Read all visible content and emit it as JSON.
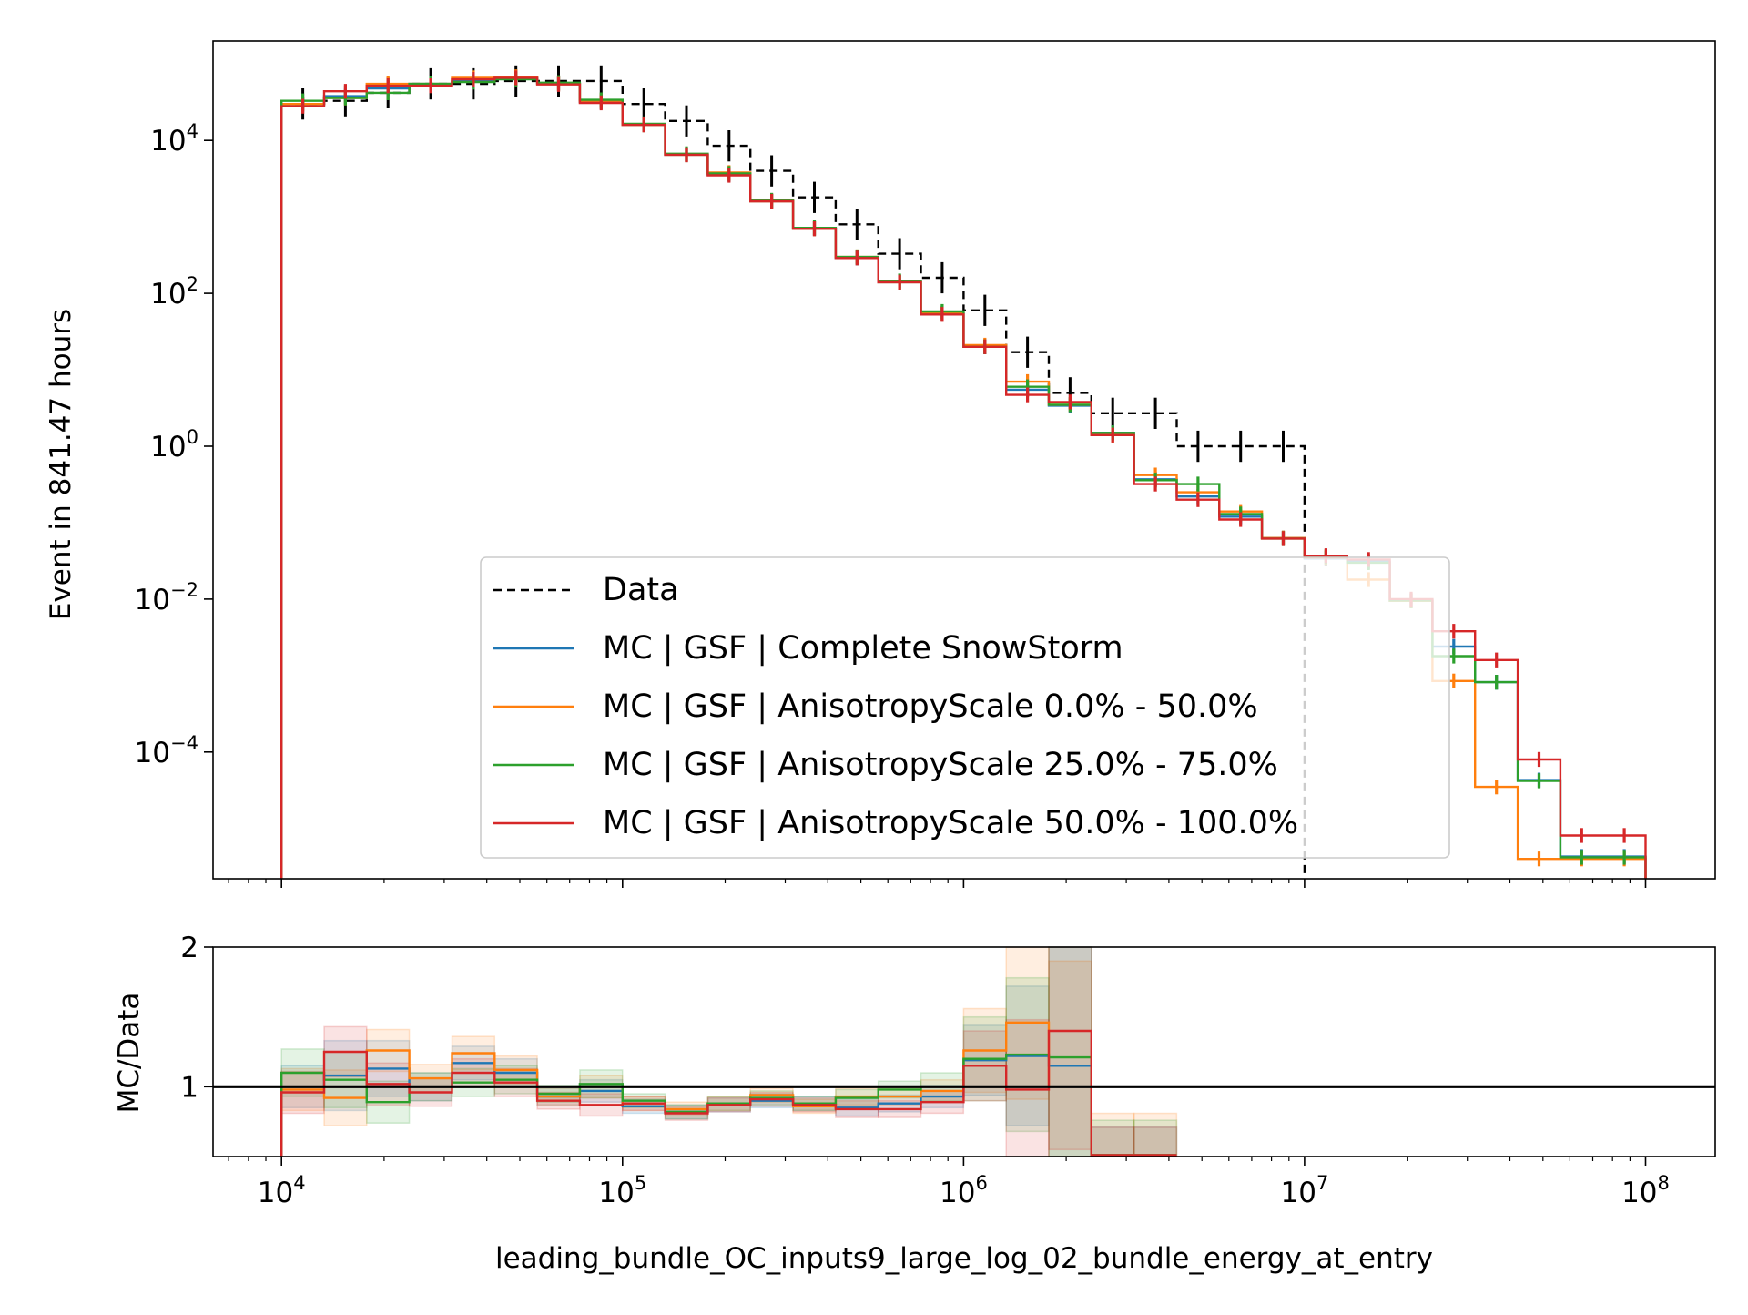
{
  "chart_data": [
    {
      "type": "line",
      "panel": "main",
      "xlabel": "",
      "ylabel": "Event in 841.47 hours",
      "xscale": "log",
      "yscale": "log",
      "xlim": [
        6300,
        160000000
      ],
      "ylim": [
        2.2e-06,
        200000
      ],
      "x_ticks": [
        {
          "v": 10000,
          "e": "4"
        },
        {
          "v": 100000,
          "e": "5"
        },
        {
          "v": 1000000,
          "e": "6"
        },
        {
          "v": 10000000,
          "e": "7"
        },
        {
          "v": 100000000,
          "e": "8"
        }
      ],
      "y_ticks": [
        {
          "v": 10000,
          "e": "4"
        },
        {
          "v": 100,
          "e": "2"
        },
        {
          "v": 1,
          "e": "0"
        },
        {
          "v": 0.01,
          "e": "−2"
        },
        {
          "v": 0.0001,
          "e": "−4"
        }
      ],
      "x_tick_base": "10",
      "legend_position": "lower-center",
      "bin_edges": [
        10000,
        13335,
        17783,
        23714,
        31623,
        42170,
        56234,
        74989,
        100000,
        133352,
        177828,
        237137,
        316228,
        421697,
        562341,
        749894,
        1000000,
        1333521,
        1778279,
        2371374,
        3162278,
        4216965,
        5623413,
        7498942,
        10000000,
        13335214,
        17782794,
        23713737,
        31622777,
        42169650,
        56234133,
        74989421,
        100000000
      ],
      "series": [
        {
          "name": "Data",
          "color": "#000000",
          "style": "dashed",
          "values": [
            30000,
            33000,
            42000,
            55000,
            55000,
            60000,
            60000,
            60000,
            30000,
            18000,
            8500,
            4000,
            1800,
            800,
            330,
            160,
            60,
            17,
            5,
            2.7,
            2.7,
            1.0,
            1.0,
            1.0,
            null,
            null,
            null,
            null,
            null,
            null,
            null,
            null
          ]
        },
        {
          "name": "MC | GSF | Complete SnowStorm",
          "color": "#1f77b4",
          "style": "solid",
          "values": [
            30000,
            38000,
            48000,
            55000,
            60000,
            65000,
            55000,
            32000,
            16000,
            6500,
            3600,
            1600,
            700,
            290,
            140,
            55,
            20,
            5.5,
            3.4,
            1.5,
            0.37,
            0.22,
            0.12,
            0.063,
            0.034,
            0.031,
            0.0095,
            0.0024,
            0.00082,
            4.3e-05,
            4.3e-06,
            4.3e-06
          ]
        },
        {
          "name": "MC | GSF | AnisotropyScale 0.0% - 50.0%",
          "color": "#ff7f0e",
          "style": "solid",
          "values": [
            30000,
            36000,
            55000,
            55000,
            66000,
            68000,
            55000,
            33000,
            16000,
            6500,
            3800,
            1600,
            700,
            300,
            140,
            55,
            21,
            7.0,
            3.5,
            1.4,
            0.42,
            0.25,
            0.14,
            0.063,
            0.035,
            0.018,
            0.0095,
            0.00085,
            3.5e-05,
            4e-06,
            4e-06,
            4e-06
          ]
        },
        {
          "name": "MC | GSF | AnisotropyScale 25.0% - 75.0%",
          "color": "#2ca02c",
          "style": "solid",
          "values": [
            33000,
            36000,
            42000,
            55000,
            58000,
            63000,
            57000,
            34000,
            16500,
            6700,
            3700,
            1650,
            720,
            300,
            145,
            58,
            20,
            6.0,
            3.5,
            1.5,
            0.36,
            0.32,
            0.13,
            0.062,
            0.036,
            0.03,
            0.0096,
            0.0018,
            0.00082,
            4.2e-05,
            4.2e-06,
            4.2e-06
          ]
        },
        {
          "name": "MC | GSF | AnisotropyScale 50.0% - 100.0%",
          "color": "#d62728",
          "style": "solid",
          "values": [
            28000,
            44000,
            52000,
            52000,
            63000,
            66000,
            54000,
            31000,
            16000,
            6500,
            3500,
            1600,
            700,
            290,
            140,
            53,
            20,
            4.7,
            3.8,
            1.4,
            0.32,
            0.2,
            0.11,
            0.062,
            0.037,
            0.033,
            0.01,
            0.0038,
            0.0016,
            8e-05,
            8.1e-06,
            8.1e-06
          ]
        }
      ]
    },
    {
      "type": "line",
      "panel": "ratio",
      "xlabel": "leading_bundle_OC_inputs9_large_log_02_bundle_energy_at_entry",
      "ylabel": "MC/Data",
      "xscale": "log",
      "xlim": [
        6300,
        160000000
      ],
      "ylim": [
        0.5,
        2
      ],
      "y_ticks": [
        {
          "v": 1,
          "label": "1"
        },
        {
          "v": 2,
          "label": "2"
        }
      ],
      "reference_line": 1,
      "bin_edges": [
        10000,
        13335,
        17783,
        23714,
        31623,
        42170,
        56234,
        74989,
        100000,
        133352,
        177828,
        237137,
        316228,
        421697,
        562341,
        749894,
        1000000,
        1333521,
        1778279,
        2371374,
        3162278,
        4216965,
        5623413,
        7498942,
        10000000,
        13335214
      ],
      "series": [
        {
          "name": "MC | GSF | Complete SnowStorm",
          "color": "#1f77b4",
          "values": [
            1.0,
            1.08,
            1.13,
            1.0,
            1.17,
            1.1,
            0.93,
            0.97,
            0.86,
            0.82,
            0.87,
            0.9,
            0.88,
            0.85,
            0.88,
            0.93,
            1.19,
            1.22,
            1.15,
            0.51,
            0.51,
            null,
            null,
            null,
            null
          ],
          "band": [
            0.15,
            0.25,
            0.2,
            0.1,
            0.12,
            0.1,
            0.06,
            0.08,
            0.05,
            0.05,
            0.05,
            0.05,
            0.05,
            0.06,
            0.06,
            0.08,
            0.25,
            0.5,
            0.85,
            0.2,
            0.2,
            null,
            null,
            null,
            null
          ]
        },
        {
          "name": "MC | GSF | AnisotropyScale 0.0% - 50.0%",
          "color": "#ff7f0e",
          "values": [
            0.98,
            0.92,
            1.26,
            1.06,
            1.24,
            1.12,
            0.93,
            1.0,
            0.88,
            0.84,
            0.88,
            0.94,
            0.86,
            0.93,
            0.93,
            0.97,
            1.26,
            1.46,
            1.0,
            0.51,
            0.51,
            null,
            null,
            null,
            null
          ],
          "band": [
            0.15,
            0.2,
            0.15,
            0.1,
            0.12,
            0.1,
            0.06,
            0.08,
            0.05,
            0.05,
            0.05,
            0.05,
            0.05,
            0.06,
            0.06,
            0.08,
            0.3,
            0.55,
            0.9,
            0.3,
            0.3,
            null,
            null,
            null,
            null
          ]
        },
        {
          "name": "MC | GSF | AnisotropyScale 25.0% - 75.0%",
          "color": "#2ca02c",
          "values": [
            1.1,
            1.05,
            0.89,
            1.0,
            1.03,
            1.05,
            0.95,
            1.02,
            0.9,
            0.82,
            0.88,
            0.92,
            0.88,
            0.92,
            0.98,
            1.0,
            1.2,
            1.23,
            1.21,
            0.51,
            0.51,
            null,
            null,
            null,
            null
          ],
          "band": [
            0.17,
            0.2,
            0.15,
            0.1,
            0.1,
            0.1,
            0.06,
            0.1,
            0.05,
            0.05,
            0.05,
            0.05,
            0.05,
            0.06,
            0.06,
            0.1,
            0.3,
            0.55,
            0.8,
            0.25,
            0.25,
            null,
            null,
            null,
            null
          ]
        },
        {
          "name": "MC | GSF | AnisotropyScale 50.0% - 100.0%",
          "color": "#d62728",
          "values": [
            0.96,
            1.25,
            1.02,
            0.96,
            1.1,
            1.03,
            0.9,
            0.87,
            0.88,
            0.81,
            0.87,
            0.91,
            0.87,
            0.84,
            0.84,
            0.89,
            1.15,
            0.98,
            1.4,
            0.51,
            0.51,
            null,
            null,
            null,
            null
          ],
          "band": [
            0.15,
            0.18,
            0.15,
            0.1,
            0.1,
            0.1,
            0.06,
            0.08,
            0.05,
            0.05,
            0.05,
            0.05,
            0.05,
            0.06,
            0.06,
            0.08,
            0.25,
            0.5,
            0.85,
            0.2,
            0.2,
            null,
            null,
            null,
            null
          ]
        }
      ]
    }
  ]
}
